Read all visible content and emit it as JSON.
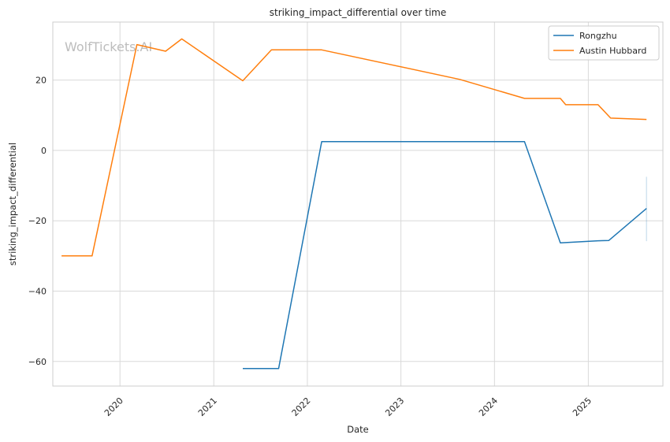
{
  "chart_data": {
    "type": "line",
    "title": "striking_impact_differential over time",
    "xlabel": "Date",
    "ylabel": "striking_impact_differential",
    "watermark": "WolfTickets.AI",
    "x_ticks": [
      "2020",
      "2021",
      "2022",
      "2023",
      "2024",
      "2025"
    ],
    "y_ticks": [
      "−60",
      "−40",
      "−20",
      "0",
      "20"
    ],
    "y_tick_values": [
      -60,
      -40,
      -20,
      0,
      20
    ],
    "xlim": [
      "2019-04-14",
      "2025-10-19"
    ],
    "ylim": [
      -67,
      36.5
    ],
    "grid": true,
    "legend_position": "top-right",
    "series": [
      {
        "name": "Rongzhu",
        "color": "#1f77b4",
        "points": [
          {
            "x": "2021-04-24",
            "y": -62
          },
          {
            "x": "2021-09-11",
            "y": -62
          },
          {
            "x": "2022-02-26",
            "y": 2.5
          },
          {
            "x": "2024-04-27",
            "y": 2.5
          },
          {
            "x": "2024-09-14",
            "y": -26.3
          },
          {
            "x": "2025-02-08",
            "y": -25.7
          },
          {
            "x": "2025-03-22",
            "y": -25.6
          },
          {
            "x": "2025-08-16",
            "y": -16.5
          }
        ],
        "error_band": {
          "x": "2025-08-16",
          "low": -25.8,
          "high": -7.5
        }
      },
      {
        "name": "Austin Hubbard",
        "color": "#ff7f0e",
        "points": [
          {
            "x": "2019-05-18",
            "y": -30
          },
          {
            "x": "2019-09-14",
            "y": -30
          },
          {
            "x": "2020-03-07",
            "y": 30.1
          },
          {
            "x": "2020-06-27",
            "y": 28.2
          },
          {
            "x": "2020-08-29",
            "y": 31.7
          },
          {
            "x": "2021-04-24",
            "y": 19.8
          },
          {
            "x": "2021-08-14",
            "y": 28.6
          },
          {
            "x": "2022-02-26",
            "y": 28.6
          },
          {
            "x": "2023-08-19",
            "y": 20.2
          },
          {
            "x": "2024-04-27",
            "y": 14.8
          },
          {
            "x": "2024-09-14",
            "y": 14.8
          },
          {
            "x": "2024-10-05",
            "y": 13
          },
          {
            "x": "2025-02-08",
            "y": 13
          },
          {
            "x": "2025-03-29",
            "y": 9.2
          },
          {
            "x": "2025-08-16",
            "y": 8.8
          }
        ]
      }
    ]
  }
}
